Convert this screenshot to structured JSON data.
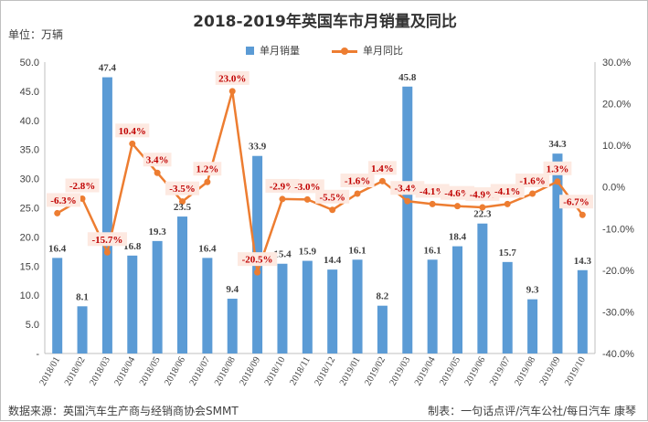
{
  "header": {
    "title": "2018-2019年英国车市月销量及同比",
    "unit": "单位：万辆"
  },
  "footer": {
    "source": "数据来源：英国汽车生产商与经销商协会SMMT",
    "author": "制表：一句话点评/汽车公社/每日汽车 康琴"
  },
  "legend": {
    "bar_label": "单月销量",
    "line_label": "单月同比"
  },
  "colors": {
    "bar": "#5b9bd5",
    "line": "#ed7d31",
    "label_box_fill": "#fde9e1",
    "label_box_text": "#c00000"
  },
  "chart_data": {
    "type": "bar+line",
    "title": "2018-2019年英国车市月销量及同比",
    "unit_label": "单位：万辆",
    "categories": [
      "2018/01",
      "2018/02",
      "2018/03",
      "2018/04",
      "2018/05",
      "2018/06",
      "2018/07",
      "2018/08",
      "2018/09",
      "2018/10",
      "2018/11",
      "2018/12",
      "2019/01",
      "2019/02",
      "2019/03",
      "2019/04",
      "2019/05",
      "2019/06",
      "2019/07",
      "2019/08",
      "2019/09",
      "2019/10"
    ],
    "series": [
      {
        "name": "单月销量",
        "type": "bar",
        "axis": "left",
        "values": [
          16.4,
          8.1,
          47.4,
          16.8,
          19.3,
          23.5,
          16.4,
          9.4,
          33.9,
          15.4,
          15.9,
          14.4,
          16.1,
          8.2,
          45.8,
          16.1,
          18.4,
          22.3,
          15.7,
          9.3,
          34.3,
          14.3
        ],
        "labels": [
          "16.4",
          "8.1",
          "47.4",
          "16.8",
          "19.3",
          "23.5",
          "16.4",
          "9.4",
          "33.9",
          "15.4",
          "15.9",
          "14.4",
          "16.1",
          "8.2",
          "45.8",
          "16.1",
          "18.4",
          "22.3",
          "15.7",
          "9.3",
          "34.3",
          "14.3"
        ]
      },
      {
        "name": "单月同比",
        "type": "line",
        "axis": "right",
        "values": [
          -6.3,
          -2.8,
          -15.7,
          10.4,
          3.4,
          -3.5,
          1.2,
          23.0,
          -20.5,
          -2.9,
          -3.0,
          -5.5,
          -1.6,
          1.4,
          -3.4,
          -4.1,
          -4.6,
          -4.9,
          -4.1,
          -1.6,
          1.3,
          -6.7
        ],
        "labels": [
          "-6.3%",
          "-2.8%",
          "-15.7%",
          "10.4%",
          "3.4%",
          "-3.5%",
          "1.2%",
          "23.0%",
          "-20.5%",
          "-2.9%",
          "-3.0%",
          "-5.5%",
          "-1.6%",
          "1.4%",
          "-3.4%",
          "-4.1%",
          "-4.6%",
          "-4.9%",
          "-4.1%",
          "-1.6%",
          "1.3%",
          "-6.7%"
        ]
      }
    ],
    "y_left": {
      "range": [
        0,
        50
      ],
      "ticks": [
        0,
        5,
        10,
        15,
        20,
        25,
        30,
        35,
        40,
        45,
        50
      ],
      "tick_labels": [
        "-",
        "5.0",
        "10.0",
        "15.0",
        "20.0",
        "25.0",
        "30.0",
        "35.0",
        "40.0",
        "45.0",
        "50.0"
      ]
    },
    "y_right": {
      "range": [
        -40,
        30
      ],
      "ticks": [
        -40,
        -30,
        -20,
        -10,
        0,
        10,
        20,
        30
      ],
      "tick_labels": [
        "-40.0%",
        "-30.0%",
        "-20.0%",
        "-10.0%",
        "0.0%",
        "10.0%",
        "20.0%",
        "30.0%"
      ]
    },
    "grid": false,
    "legend_position": "top"
  }
}
